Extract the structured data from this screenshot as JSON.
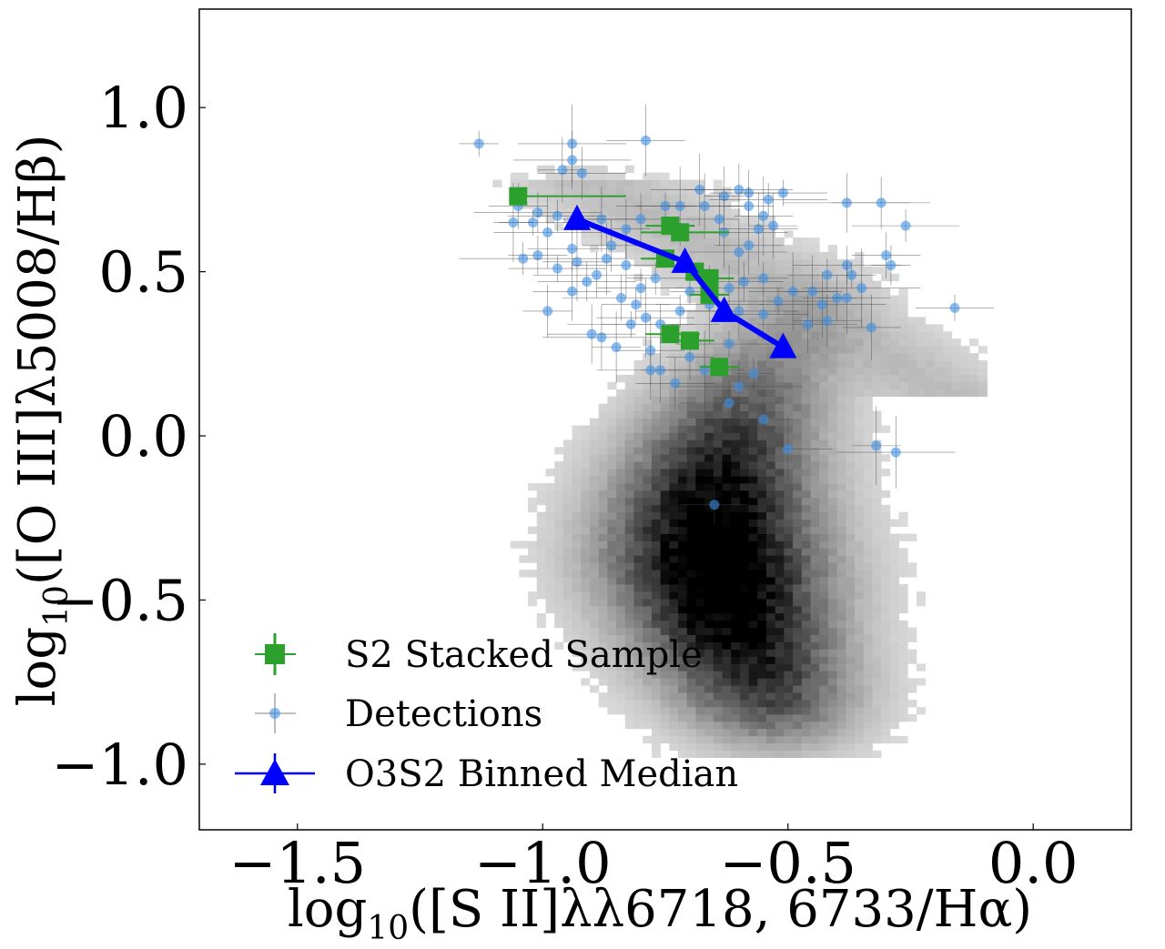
{
  "chart_data": {
    "type": "scatter",
    "xlabel": "log10([S II]λλ6718, 6733/Hα)",
    "ylabel": "log10([O III]λ5008/Hβ)",
    "xlim": [
      -1.7,
      0.2
    ],
    "ylim": [
      -1.2,
      1.3
    ],
    "x_ticks": [
      -1.5,
      -1.0,
      -0.5,
      0.0
    ],
    "y_ticks": [
      -1.0,
      -0.5,
      0.0,
      0.5,
      1.0
    ],
    "x_tick_labels": [
      "−1.5",
      "−1.0",
      "−0.5",
      "0.0"
    ],
    "y_tick_labels": [
      "−1.0",
      "−0.5",
      "0.0",
      "0.5",
      "1.0"
    ],
    "xlabel_parts": {
      "base": "log",
      "sub": "10",
      "rest": "([S II]λλ6718, 6733/Hα)"
    },
    "ylabel_parts": {
      "base": "log",
      "sub": "10",
      "rest": "([O III]λ5008/Hβ)"
    },
    "legend_position": "lower-left",
    "colors": {
      "stacked": "#2ca02c",
      "detections": "#3d8fe6",
      "median": "#0000ff",
      "background": "#000000"
    },
    "background_density": {
      "description": "2D histogram (grayscale)",
      "peak": [
        -0.48,
        -0.5
      ]
    },
    "series": [
      {
        "name": "S2 Stacked Sample",
        "marker": "square",
        "points": [
          {
            "x": -1.05,
            "y": 0.73,
            "xerr": [
              0.0,
              0.22
            ]
          },
          {
            "x": -0.75,
            "y": 0.54,
            "xerr": [
              0.05,
              0.05
            ]
          },
          {
            "x": -0.74,
            "y": 0.64,
            "xerr": [
              0.05,
              0.05
            ]
          },
          {
            "x": -0.72,
            "y": 0.62,
            "xerr": [
              0.08,
              0.1
            ]
          },
          {
            "x": -0.69,
            "y": 0.5,
            "xerr": [
              0.04,
              0.04
            ]
          },
          {
            "x": -0.66,
            "y": 0.48,
            "xerr": [
              0.05,
              0.05
            ]
          },
          {
            "x": -0.66,
            "y": 0.43,
            "xerr": [
              0.04,
              0.04
            ]
          },
          {
            "x": -0.74,
            "y": 0.31,
            "xerr": [
              0.05,
              0.06
            ]
          },
          {
            "x": -0.7,
            "y": 0.29,
            "xerr": [
              0.04,
              0.05
            ]
          },
          {
            "x": -0.64,
            "y": 0.21,
            "xerr": [
              0.04,
              0.04
            ]
          }
        ]
      },
      {
        "name": "Detections",
        "marker": "circle",
        "points": [
          {
            "x": -1.13,
            "y": 0.89
          },
          {
            "x": -0.94,
            "y": 0.89
          },
          {
            "x": -0.79,
            "y": 0.9
          },
          {
            "x": -0.96,
            "y": 0.81
          },
          {
            "x": -0.94,
            "y": 0.84
          },
          {
            "x": -0.92,
            "y": 0.8
          },
          {
            "x": -1.05,
            "y": 0.7
          },
          {
            "x": -1.01,
            "y": 0.68
          },
          {
            "x": -0.97,
            "y": 0.67
          },
          {
            "x": -1.02,
            "y": 0.65
          },
          {
            "x": -1.06,
            "y": 0.65
          },
          {
            "x": -0.99,
            "y": 0.62
          },
          {
            "x": -0.88,
            "y": 0.66
          },
          {
            "x": -0.83,
            "y": 0.63
          },
          {
            "x": -0.8,
            "y": 0.66
          },
          {
            "x": -0.94,
            "y": 0.57
          },
          {
            "x": -1.01,
            "y": 0.55
          },
          {
            "x": -1.04,
            "y": 0.54
          },
          {
            "x": -0.97,
            "y": 0.51
          },
          {
            "x": -0.93,
            "y": 0.53
          },
          {
            "x": -0.87,
            "y": 0.54
          },
          {
            "x": -0.83,
            "y": 0.52
          },
          {
            "x": -0.94,
            "y": 0.44
          },
          {
            "x": -0.99,
            "y": 0.38
          },
          {
            "x": -0.84,
            "y": 0.42
          },
          {
            "x": -0.8,
            "y": 0.45
          },
          {
            "x": -0.77,
            "y": 0.48
          },
          {
            "x": -0.82,
            "y": 0.34
          },
          {
            "x": -0.79,
            "y": 0.36
          },
          {
            "x": -0.78,
            "y": 0.26
          },
          {
            "x": -0.76,
            "y": 0.2
          },
          {
            "x": -0.78,
            "y": 0.2
          },
          {
            "x": -0.73,
            "y": 0.16
          },
          {
            "x": -0.7,
            "y": 0.24
          },
          {
            "x": -0.76,
            "y": 0.34
          },
          {
            "x": -0.72,
            "y": 0.38
          },
          {
            "x": -0.75,
            "y": 0.7
          },
          {
            "x": -0.72,
            "y": 0.7
          },
          {
            "x": -0.68,
            "y": 0.75
          },
          {
            "x": -0.67,
            "y": 0.7
          },
          {
            "x": -0.63,
            "y": 0.73
          },
          {
            "x": -0.6,
            "y": 0.75
          },
          {
            "x": -0.58,
            "y": 0.74
          },
          {
            "x": -0.58,
            "y": 0.7
          },
          {
            "x": -0.54,
            "y": 0.72
          },
          {
            "x": -0.51,
            "y": 0.74
          },
          {
            "x": -0.55,
            "y": 0.67
          },
          {
            "x": -0.63,
            "y": 0.62
          },
          {
            "x": -0.6,
            "y": 0.56
          },
          {
            "x": -0.58,
            "y": 0.58
          },
          {
            "x": -0.64,
            "y": 0.66
          },
          {
            "x": -0.62,
            "y": 0.45
          },
          {
            "x": -0.59,
            "y": 0.47
          },
          {
            "x": -0.55,
            "y": 0.48
          },
          {
            "x": -0.52,
            "y": 0.41
          },
          {
            "x": -0.49,
            "y": 0.44
          },
          {
            "x": -0.45,
            "y": 0.44
          },
          {
            "x": -0.43,
            "y": 0.4
          },
          {
            "x": -0.46,
            "y": 0.34
          },
          {
            "x": -0.42,
            "y": 0.35
          },
          {
            "x": -0.4,
            "y": 0.42
          },
          {
            "x": -0.38,
            "y": 0.52
          },
          {
            "x": -0.42,
            "y": 0.49
          },
          {
            "x": -0.37,
            "y": 0.49
          },
          {
            "x": -0.35,
            "y": 0.45
          },
          {
            "x": -0.38,
            "y": 0.42
          },
          {
            "x": -0.33,
            "y": 0.33
          },
          {
            "x": -0.38,
            "y": 0.71
          },
          {
            "x": -0.31,
            "y": 0.71
          },
          {
            "x": -0.3,
            "y": 0.55
          },
          {
            "x": -0.29,
            "y": 0.52
          },
          {
            "x": -0.26,
            "y": 0.64
          },
          {
            "x": -0.16,
            "y": 0.39
          },
          {
            "x": -0.32,
            "y": -0.03
          },
          {
            "x": -0.28,
            "y": -0.05
          },
          {
            "x": -0.5,
            "y": -0.04
          },
          {
            "x": -0.55,
            "y": 0.05
          },
          {
            "x": -0.6,
            "y": 0.15
          },
          {
            "x": -0.62,
            "y": 0.1
          },
          {
            "x": -0.65,
            "y": -0.21
          },
          {
            "x": -0.57,
            "y": 0.19
          },
          {
            "x": -0.62,
            "y": 0.28
          },
          {
            "x": -0.67,
            "y": 0.2
          },
          {
            "x": -0.85,
            "y": 0.27
          },
          {
            "x": -0.88,
            "y": 0.3
          },
          {
            "x": -0.9,
            "y": 0.31
          },
          {
            "x": -0.86,
            "y": 0.58
          },
          {
            "x": -0.89,
            "y": 0.49
          },
          {
            "x": -0.91,
            "y": 0.47
          },
          {
            "x": -0.81,
            "y": 0.4
          },
          {
            "x": -0.7,
            "y": 0.44
          },
          {
            "x": -0.66,
            "y": 0.4
          },
          {
            "x": -0.56,
            "y": 0.63
          },
          {
            "x": -0.53,
            "y": 0.64
          },
          {
            "x": -0.6,
            "y": 0.38
          },
          {
            "x": -0.55,
            "y": 0.37
          }
        ]
      },
      {
        "name": "O3S2 Binned Median",
        "marker": "triangle",
        "points": [
          {
            "x": -0.93,
            "y": 0.66
          },
          {
            "x": -0.71,
            "y": 0.53
          },
          {
            "x": -0.63,
            "y": 0.38
          },
          {
            "x": -0.51,
            "y": 0.27
          }
        ]
      }
    ]
  }
}
